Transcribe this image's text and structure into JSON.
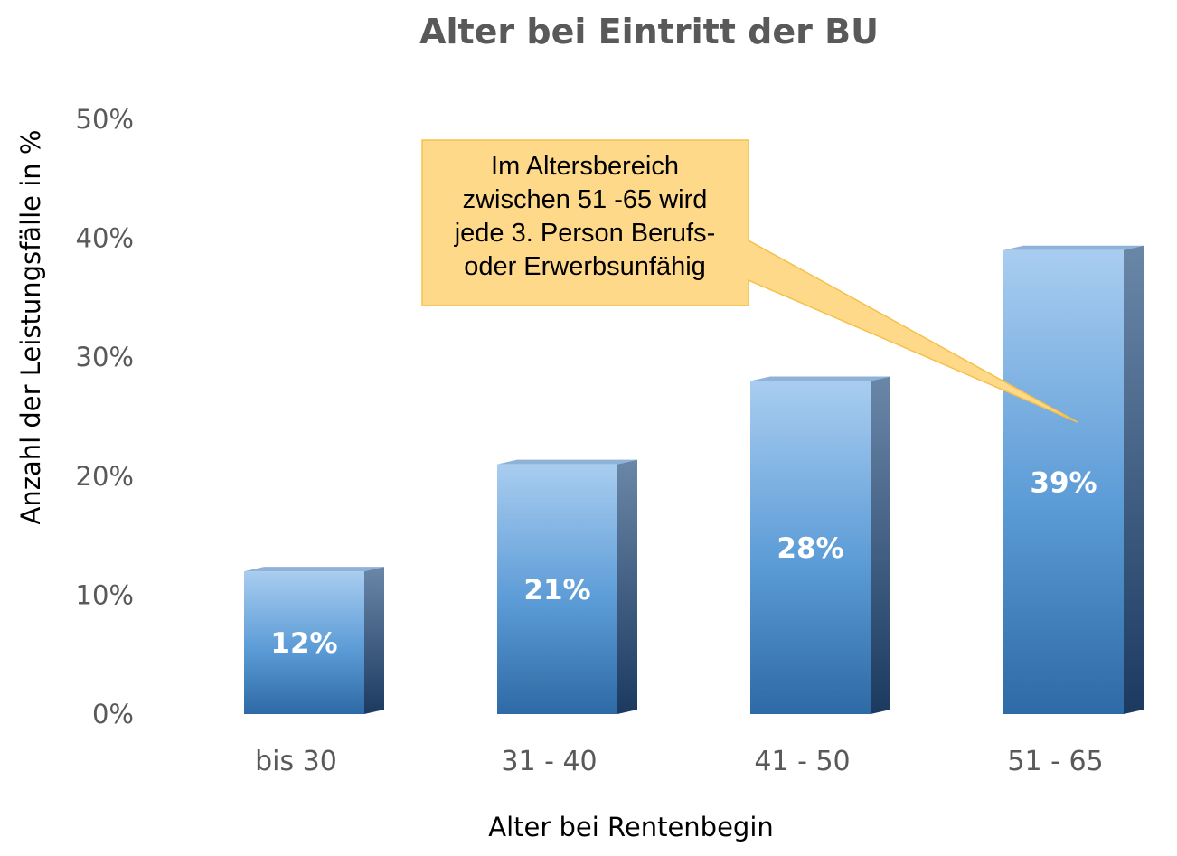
{
  "chart_data": {
    "type": "bar",
    "title": "Alter bei Eintritt der BU",
    "xlabel": "Alter bei Rentenbegin",
    "ylabel": "Anzahl der Leistungsfälle in %",
    "categories": [
      "bis 30",
      "31 - 40",
      "41 - 50",
      "51 - 65"
    ],
    "values": [
      12,
      21,
      28,
      39
    ],
    "data_labels": [
      "12%",
      "21%",
      "28%",
      "39%"
    ],
    "ylim": [
      0,
      50
    ],
    "yticks": [
      0,
      10,
      20,
      30,
      40,
      50
    ],
    "ytick_labels": [
      "0%",
      "10%",
      "20%",
      "30%",
      "40%",
      "50%"
    ],
    "grid": false,
    "legend": "none",
    "bar_style": "3d-column",
    "colors": {
      "bar_top": "#a9cdf0",
      "bar_bottom": "#2e6aa5",
      "bar_side": "#1f3d63",
      "callout_fill": "#ffd98a",
      "callout_stroke": "#f5c04a"
    },
    "annotation": {
      "lines": [
        "Im Altersbereich",
        "zwischen 51 -65 wird",
        "jede 3. Person Berufs-",
        "oder Erwerbsunfähig"
      ],
      "points_to": "51 - 65"
    }
  }
}
